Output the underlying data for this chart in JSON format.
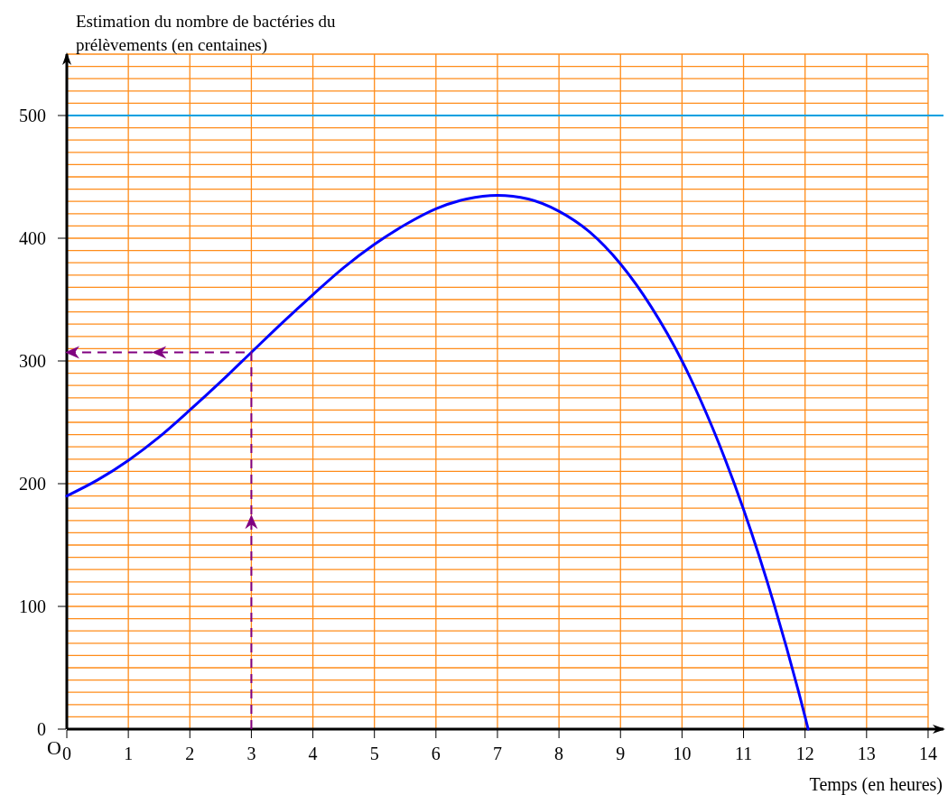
{
  "chart_data": {
    "type": "line",
    "xlabel": "Temps (en heures)",
    "ylabel": "Estimation du nombre de bactéries du prélèvements (en centaines)",
    "annotations": [
      "O"
    ],
    "xlim": [
      0,
      14.25
    ],
    "ylim": [
      0,
      550
    ],
    "xticks": [
      0,
      1,
      2,
      3,
      4,
      5,
      6,
      7,
      8,
      9,
      10,
      11,
      12,
      13,
      14
    ],
    "yticks": [
      0,
      {
        "value": 10,
        "label": null
      },
      {
        "value": 20,
        "label": null
      },
      {
        "value": 30,
        "label": null
      },
      {
        "value": 40,
        "label": null
      },
      {
        "value": 50,
        "label": null
      },
      {
        "value": 60,
        "label": null
      },
      {
        "value": 70,
        "label": null
      },
      {
        "value": 80,
        "label": null
      },
      {
        "value": 90,
        "label": null
      },
      100,
      {
        "value": 110,
        "label": null
      },
      {
        "value": 120,
        "label": null
      },
      {
        "value": 130,
        "label": null
      },
      {
        "value": 140,
        "label": null
      },
      {
        "value": 150,
        "label": null
      },
      {
        "value": 160,
        "label": null
      },
      {
        "value": 170,
        "label": null
      },
      {
        "value": 180,
        "label": null
      },
      {
        "value": 190,
        "label": null
      },
      200,
      {
        "value": 210,
        "label": null
      },
      {
        "value": 220,
        "label": null
      },
      {
        "value": 230,
        "label": null
      },
      {
        "value": 240,
        "label": null
      },
      {
        "value": 250,
        "label": null
      },
      {
        "value": 260,
        "label": null
      },
      {
        "value": 270,
        "label": null
      },
      {
        "value": 280,
        "label": null
      },
      {
        "value": 290,
        "label": null
      },
      300,
      {
        "value": 310,
        "label": null
      },
      {
        "value": 320,
        "label": null
      },
      {
        "value": 330,
        "label": null
      },
      {
        "value": 340,
        "label": null
      },
      {
        "value": 350,
        "label": null
      },
      {
        "value": 360,
        "label": null
      },
      {
        "value": 370,
        "label": null
      },
      {
        "value": 380,
        "label": null
      },
      {
        "value": 390,
        "label": null
      },
      400,
      {
        "value": 410,
        "label": null
      },
      {
        "value": 420,
        "label": null
      },
      {
        "value": 430,
        "label": null
      },
      {
        "value": 440,
        "label": null
      },
      {
        "value": 450,
        "label": null
      },
      {
        "value": 460,
        "label": null
      },
      {
        "value": 470,
        "label": null
      },
      {
        "value": 480,
        "label": null
      },
      {
        "value": 490,
        "label": null
      },
      500,
      {
        "value": 510,
        "label": null
      },
      {
        "value": 520,
        "label": null
      },
      {
        "value": 530,
        "label": null
      },
      {
        "value": 540,
        "label": null
      },
      {
        "value": 550,
        "label": null
      }
    ],
    "grid": true,
    "ref_lines": [
      {
        "axis": "y",
        "value": 500,
        "color": "#00a0e0"
      }
    ],
    "series": [
      {
        "color": "#0000ff",
        "x": [
          0,
          0.5,
          1,
          1.5,
          2,
          2.5,
          3,
          3.5,
          4,
          4.5,
          5,
          5.5,
          6,
          6.5,
          7,
          7.5,
          8,
          8.5,
          9,
          9.5,
          10,
          10.5,
          11,
          11.5,
          12,
          12.05
        ],
        "values": [
          190,
          203,
          219,
          238,
          260,
          283,
          307,
          331,
          354,
          376,
          395,
          411,
          424,
          432,
          435,
          432,
          422,
          405,
          379,
          344,
          300,
          245,
          179,
          101,
          10,
          0
        ]
      }
    ]
  }
}
